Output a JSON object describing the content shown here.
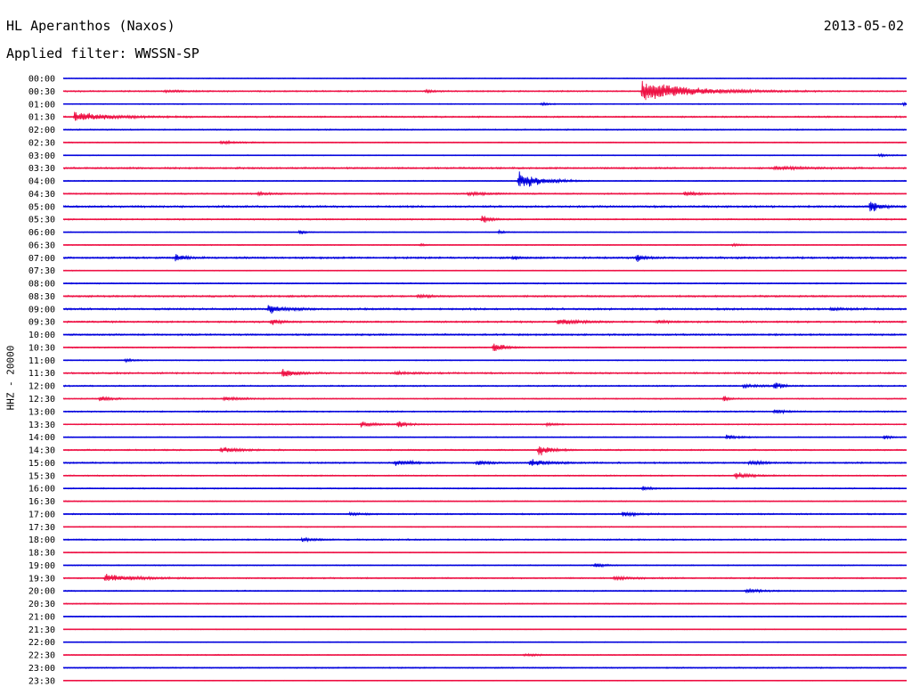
{
  "header": {
    "station": "HL Aperanthos (Naxos)",
    "date": "2013-05-02",
    "filter": "Applied filter: WWSSN-SP",
    "channel": "HHZ - 20000"
  },
  "colors": {
    "blue": "#0000dd",
    "red": "#ee1144"
  },
  "chart_data": {
    "type": "line",
    "title": "HL Aperanthos (Naxos)",
    "subtitle": "Applied filter: WWSSN-SP",
    "ylabel": "HHZ - 20000",
    "xlabel": "",
    "date": "2013-05-02",
    "x_unit": "minutes",
    "x_range": [
      0,
      30
    ],
    "grid": false,
    "legend": "none",
    "series_colors_alternate": [
      "#0000dd",
      "#ee1144"
    ],
    "rows": [
      {
        "label": "00:00",
        "noise": 0.5,
        "events": []
      },
      {
        "label": "00:30",
        "noise": 0.8,
        "events": [
          {
            "t": 3.6,
            "amp": 1.5,
            "dur": 0.6
          },
          {
            "t": 20.6,
            "amp": 14,
            "dur": 1.6
          },
          {
            "t": 12.9,
            "amp": 2,
            "dur": 0.3
          }
        ]
      },
      {
        "label": "01:00",
        "noise": 0.6,
        "events": [
          {
            "t": 17.0,
            "amp": 1.5,
            "dur": 0.3
          },
          {
            "t": 29.9,
            "amp": 3,
            "dur": 0.2
          }
        ]
      },
      {
        "label": "01:30",
        "noise": 0.9,
        "events": [
          {
            "t": 0.4,
            "amp": 6,
            "dur": 1.2
          }
        ]
      },
      {
        "label": "02:00",
        "noise": 0.7,
        "events": []
      },
      {
        "label": "02:30",
        "noise": 0.6,
        "events": [
          {
            "t": 5.6,
            "amp": 2,
            "dur": 0.5
          }
        ]
      },
      {
        "label": "03:00",
        "noise": 0.5,
        "events": [
          {
            "t": 29.0,
            "amp": 2,
            "dur": 0.3
          }
        ]
      },
      {
        "label": "03:30",
        "noise": 1.0,
        "events": [
          {
            "t": 25.3,
            "amp": 2.5,
            "dur": 0.8
          }
        ]
      },
      {
        "label": "04:00",
        "noise": 0.6,
        "events": [
          {
            "t": 16.2,
            "amp": 12,
            "dur": 0.7
          }
        ]
      },
      {
        "label": "04:30",
        "noise": 0.8,
        "events": [
          {
            "t": 6.9,
            "amp": 1.5,
            "dur": 0.5
          },
          {
            "t": 14.4,
            "amp": 2.5,
            "dur": 0.6
          },
          {
            "t": 22.1,
            "amp": 3,
            "dur": 0.4
          }
        ]
      },
      {
        "label": "05:00",
        "noise": 1.1,
        "events": [
          {
            "t": 28.7,
            "amp": 9,
            "dur": 0.3
          }
        ]
      },
      {
        "label": "05:30",
        "noise": 0.8,
        "events": [
          {
            "t": 14.9,
            "amp": 5,
            "dur": 0.3
          }
        ]
      },
      {
        "label": "06:00",
        "noise": 0.5,
        "events": [
          {
            "t": 8.4,
            "amp": 4,
            "dur": 0.15
          },
          {
            "t": 15.5,
            "amp": 2,
            "dur": 0.2
          }
        ]
      },
      {
        "label": "06:30",
        "noise": 0.6,
        "events": [
          {
            "t": 12.7,
            "amp": 1.5,
            "dur": 0.2
          },
          {
            "t": 23.8,
            "amp": 1.5,
            "dur": 0.3
          }
        ]
      },
      {
        "label": "07:00",
        "noise": 1.1,
        "events": [
          {
            "t": 4.0,
            "amp": 5,
            "dur": 0.3
          },
          {
            "t": 16.0,
            "amp": 3,
            "dur": 0.2
          },
          {
            "t": 20.4,
            "amp": 6,
            "dur": 0.2
          }
        ]
      },
      {
        "label": "07:30",
        "noise": 0.5,
        "events": []
      },
      {
        "label": "08:00",
        "noise": 0.7,
        "events": []
      },
      {
        "label": "08:30",
        "noise": 1.0,
        "events": [
          {
            "t": 12.6,
            "amp": 2,
            "dur": 0.4
          }
        ]
      },
      {
        "label": "09:00",
        "noise": 1.1,
        "events": [
          {
            "t": 7.3,
            "amp": 6,
            "dur": 0.5
          },
          {
            "t": 27.3,
            "amp": 2,
            "dur": 0.5
          }
        ]
      },
      {
        "label": "09:30",
        "noise": 1.0,
        "events": [
          {
            "t": 7.4,
            "amp": 4,
            "dur": 0.3
          },
          {
            "t": 17.6,
            "amp": 4,
            "dur": 0.6
          },
          {
            "t": 21.1,
            "amp": 2,
            "dur": 0.5
          }
        ]
      },
      {
        "label": "10:00",
        "noise": 1.0,
        "events": []
      },
      {
        "label": "10:30",
        "noise": 0.7,
        "events": [
          {
            "t": 15.3,
            "amp": 8,
            "dur": 0.3
          }
        ]
      },
      {
        "label": "11:00",
        "noise": 0.6,
        "events": [
          {
            "t": 2.2,
            "amp": 2,
            "dur": 0.3
          }
        ]
      },
      {
        "label": "11:30",
        "noise": 1.0,
        "events": [
          {
            "t": 7.8,
            "amp": 6,
            "dur": 0.4
          },
          {
            "t": 11.8,
            "amp": 2,
            "dur": 0.5
          }
        ]
      },
      {
        "label": "12:00",
        "noise": 0.8,
        "events": [
          {
            "t": 25.3,
            "amp": 6,
            "dur": 0.2
          },
          {
            "t": 24.2,
            "amp": 2,
            "dur": 0.6
          }
        ]
      },
      {
        "label": "12:30",
        "noise": 0.7,
        "events": [
          {
            "t": 1.3,
            "amp": 3,
            "dur": 0.4
          },
          {
            "t": 5.7,
            "amp": 2,
            "dur": 0.8
          },
          {
            "t": 23.5,
            "amp": 4,
            "dur": 0.2
          }
        ]
      },
      {
        "label": "13:00",
        "noise": 0.8,
        "events": [
          {
            "t": 25.3,
            "amp": 3,
            "dur": 0.3
          }
        ]
      },
      {
        "label": "13:30",
        "noise": 0.7,
        "events": [
          {
            "t": 10.6,
            "amp": 4,
            "dur": 0.4
          },
          {
            "t": 11.9,
            "amp": 5,
            "dur": 0.3
          },
          {
            "t": 17.2,
            "amp": 2.5,
            "dur": 0.3
          }
        ]
      },
      {
        "label": "14:00",
        "noise": 0.6,
        "events": [
          {
            "t": 23.6,
            "amp": 3,
            "dur": 0.4
          },
          {
            "t": 29.2,
            "amp": 3,
            "dur": 0.2
          }
        ]
      },
      {
        "label": "14:30",
        "noise": 0.8,
        "events": [
          {
            "t": 5.6,
            "amp": 4,
            "dur": 0.6
          },
          {
            "t": 16.9,
            "amp": 7,
            "dur": 0.4
          }
        ]
      },
      {
        "label": "15:00",
        "noise": 0.9,
        "events": [
          {
            "t": 11.8,
            "amp": 4,
            "dur": 0.5
          },
          {
            "t": 14.7,
            "amp": 3,
            "dur": 0.4
          },
          {
            "t": 16.6,
            "amp": 4,
            "dur": 0.6
          },
          {
            "t": 24.4,
            "amp": 2.5,
            "dur": 0.5
          }
        ]
      },
      {
        "label": "15:30",
        "noise": 0.7,
        "events": [
          {
            "t": 23.9,
            "amp": 4,
            "dur": 0.5
          }
        ]
      },
      {
        "label": "16:00",
        "noise": 0.7,
        "events": [
          {
            "t": 20.6,
            "amp": 2.5,
            "dur": 0.3
          }
        ]
      },
      {
        "label": "16:30",
        "noise": 0.6,
        "events": []
      },
      {
        "label": "17:00",
        "noise": 0.8,
        "events": [
          {
            "t": 10.2,
            "amp": 2,
            "dur": 0.4
          },
          {
            "t": 19.9,
            "amp": 3,
            "dur": 0.5
          }
        ]
      },
      {
        "label": "17:30",
        "noise": 0.6,
        "events": []
      },
      {
        "label": "18:00",
        "noise": 0.8,
        "events": [
          {
            "t": 8.5,
            "amp": 2.5,
            "dur": 0.4
          }
        ]
      },
      {
        "label": "18:30",
        "noise": 0.5,
        "events": []
      },
      {
        "label": "19:00",
        "noise": 0.6,
        "events": [
          {
            "t": 18.9,
            "amp": 3,
            "dur": 0.3
          }
        ]
      },
      {
        "label": "19:30",
        "noise": 0.8,
        "events": [
          {
            "t": 1.5,
            "amp": 5,
            "dur": 1.0
          },
          {
            "t": 19.6,
            "amp": 2,
            "dur": 0.6
          }
        ]
      },
      {
        "label": "20:00",
        "noise": 0.7,
        "events": [
          {
            "t": 24.3,
            "amp": 2.5,
            "dur": 0.5
          }
        ]
      },
      {
        "label": "20:30",
        "noise": 0.6,
        "events": []
      },
      {
        "label": "21:00",
        "noise": 0.6,
        "events": []
      },
      {
        "label": "21:30",
        "noise": 0.5,
        "events": []
      },
      {
        "label": "22:00",
        "noise": 0.5,
        "events": []
      },
      {
        "label": "22:30",
        "noise": 0.6,
        "events": [
          {
            "t": 16.4,
            "amp": 1.5,
            "dur": 0.5
          }
        ]
      },
      {
        "label": "23:00",
        "noise": 0.7,
        "events": []
      },
      {
        "label": "23:30",
        "noise": 0.4,
        "events": []
      }
    ]
  }
}
